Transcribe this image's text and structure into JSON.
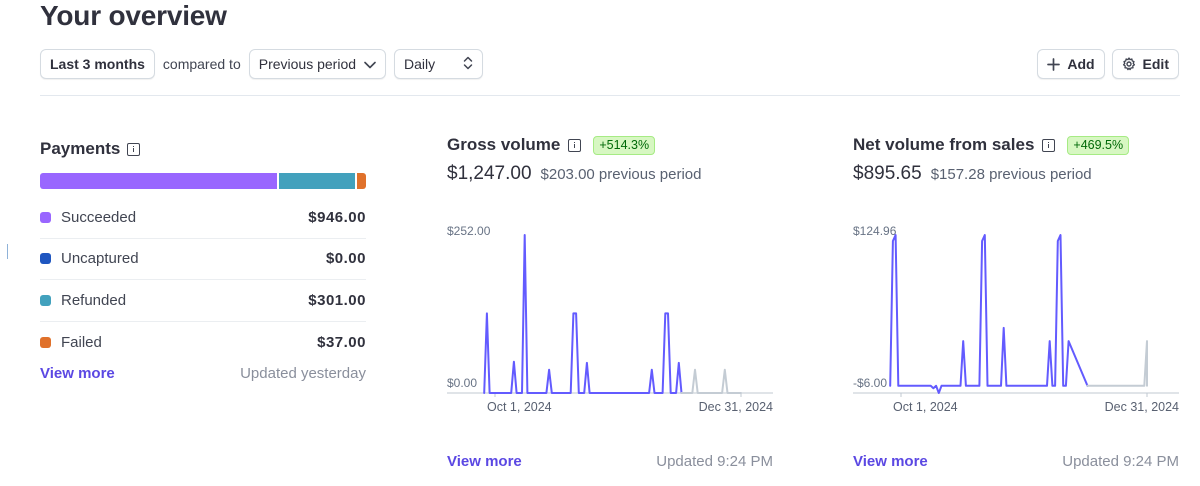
{
  "header": {
    "title": "Your overview"
  },
  "toolbar": {
    "range_label": "Last 3 months",
    "compared_to_text": "compared to",
    "comparison_label": "Previous period",
    "granularity_label": "Daily",
    "add_label": "Add",
    "edit_label": "Edit"
  },
  "payments": {
    "title": "Payments",
    "breakdown": [
      {
        "label": "Succeeded",
        "amount": "$946.00",
        "value": 946,
        "color": "#9966ff"
      },
      {
        "label": "Uncaptured",
        "amount": "$0.00",
        "value": 0,
        "color": "#1f56c0"
      },
      {
        "label": "Refunded",
        "amount": "$301.00",
        "value": 301,
        "color": "#42a1bd"
      },
      {
        "label": "Failed",
        "amount": "$37.00",
        "value": 37,
        "color": "#e0712b"
      }
    ],
    "view_more": "View more",
    "updated": "Updated yesterday"
  },
  "gross_volume": {
    "title": "Gross volume",
    "badge": "+514.3%",
    "value": "$1,247.00",
    "previous": "$203.00 previous period",
    "view_more": "View more",
    "updated": "Updated 9:24 PM",
    "chart_data": {
      "type": "line",
      "ytick_labels": [
        "$252.00",
        "$0.00"
      ],
      "ylim": [
        0,
        252
      ],
      "xtick_labels": [
        "Oct 1, 2024",
        "Dec 31, 2024"
      ],
      "x_start": "2024-10-01",
      "x_end": "2024-12-31",
      "series": [
        {
          "color": "#635bff",
          "x": [
            "2024-09-27",
            "2024-09-28",
            "2024-09-29",
            "2024-10-07",
            "2024-10-08",
            "2024-10-09",
            "2024-10-11",
            "2024-10-12",
            "2024-10-13",
            "2024-10-20",
            "2024-10-21",
            "2024-10-22",
            "2024-10-29",
            "2024-10-30",
            "2024-10-31",
            "2024-11-01",
            "2024-11-03",
            "2024-11-04",
            "2024-11-05",
            "2024-11-27",
            "2024-11-28",
            "2024-11-29",
            "2024-12-02",
            "2024-12-03",
            "2024-12-04",
            "2024-12-05",
            "2024-12-07",
            "2024-12-08",
            "2024-12-09"
          ],
          "y": [
            0,
            127,
            0,
            0,
            50,
            0,
            0,
            252,
            0,
            0,
            37,
            0,
            0,
            127,
            127,
            0,
            0,
            48,
            0,
            0,
            37,
            0,
            0,
            127,
            127,
            0,
            0,
            48,
            0
          ]
        },
        {
          "color": "#c4ccd4",
          "x": [
            "2024-12-09",
            "2024-12-13",
            "2024-12-14",
            "2024-12-15",
            "2024-12-24",
            "2024-12-25",
            "2024-12-26",
            "2024-12-31"
          ],
          "y": [
            0,
            0,
            37,
            0,
            0,
            37,
            0,
            0
          ]
        }
      ]
    }
  },
  "net_volume": {
    "title": "Net volume from sales",
    "badge": "+469.5%",
    "value": "$895.65",
    "previous": "$157.28 previous period",
    "view_more": "View more",
    "updated": "Updated 9:24 PM",
    "chart_data": {
      "type": "line",
      "ytick_labels": [
        "$124.96",
        "-$6.00"
      ],
      "ylim": [
        -6,
        124.96
      ],
      "xtick_labels": [
        "Oct 1, 2024",
        "Dec 31, 2024"
      ],
      "x_start": "2024-10-01",
      "x_end": "2024-12-31",
      "series": [
        {
          "color": "#635bff",
          "x": [
            "2024-09-27",
            "2024-09-28",
            "2024-09-29",
            "2024-09-30",
            "2024-10-12",
            "2024-10-13",
            "2024-10-14",
            "2024-10-15",
            "2024-10-16",
            "2024-10-17",
            "2024-10-18",
            "2024-10-23",
            "2024-10-24",
            "2024-10-25",
            "2024-10-30",
            "2024-10-31",
            "2024-11-01",
            "2024-11-02",
            "2024-11-07",
            "2024-11-08",
            "2024-11-09",
            "2024-11-24",
            "2024-11-25",
            "2024-11-26",
            "2024-11-27",
            "2024-11-28",
            "2024-11-29",
            "2024-11-30",
            "2024-12-01",
            "2024-12-02",
            "2024-12-09"
          ],
          "y": [
            0,
            120,
            124.96,
            0,
            0,
            -2,
            0,
            -6,
            0,
            0,
            0,
            0,
            37,
            0,
            0,
            120,
            124.96,
            0,
            0,
            48,
            0,
            0,
            37,
            0,
            0,
            120,
            124.96,
            0,
            0,
            37,
            0
          ]
        },
        {
          "color": "#c4ccd4",
          "x": [
            "2024-12-09",
            "2024-12-30",
            "2024-12-31",
            "2024-12-31"
          ],
          "y": [
            0,
            0,
            37,
            0
          ]
        }
      ]
    }
  }
}
